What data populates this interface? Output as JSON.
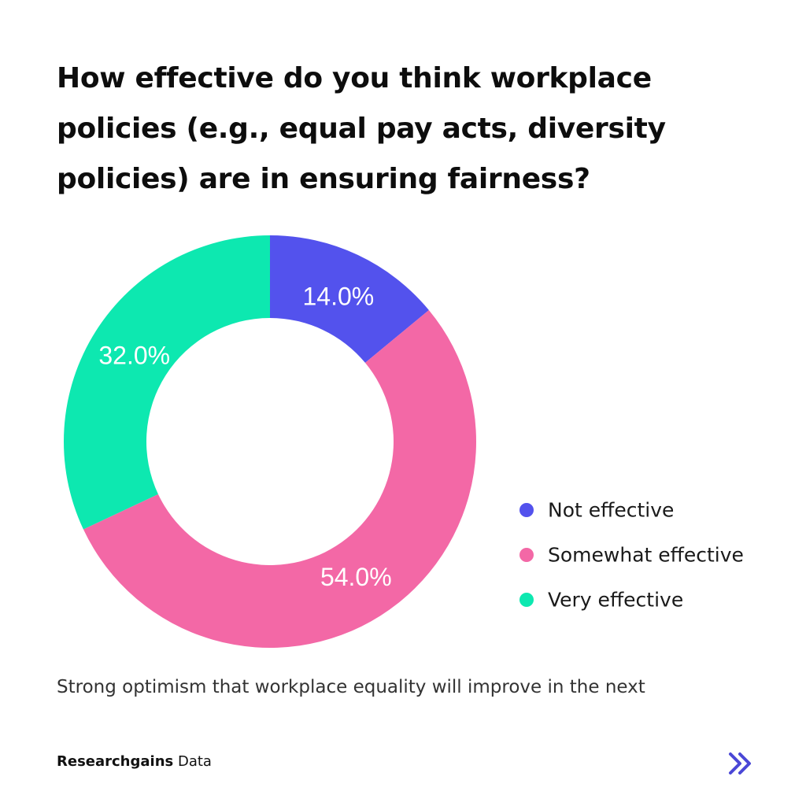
{
  "header": {
    "title": "How effective do you think workplace policies (e.g., equal pay acts, diversity policies) are in ensuring fairness?"
  },
  "caption": {
    "text": "Strong optimism that workplace equality will improve in the next"
  },
  "footer": {
    "brand_bold": "Researchgains",
    "brand_rest": " Data",
    "next_icon": "double-chevron-right-icon"
  },
  "colors": {
    "not_effective": "#5352ed",
    "somewhat_effective": "#f368a6",
    "very_effective": "#0de8b0",
    "accent": "#4a47d6"
  },
  "chart_data": {
    "type": "pie",
    "variant": "donut",
    "title": "How effective do you think workplace policies (e.g., equal pay acts, diversity policies) are in ensuring fairness?",
    "slices": [
      {
        "label": "Not effective",
        "value": 14.0,
        "display": "14.0%",
        "color": "#5352ed"
      },
      {
        "label": "Somewhat effective",
        "value": 54.0,
        "display": "54.0%",
        "color": "#f368a6"
      },
      {
        "label": "Very effective",
        "value": 32.0,
        "display": "32.0%",
        "color": "#0de8b0"
      }
    ],
    "legend_position": "right"
  }
}
